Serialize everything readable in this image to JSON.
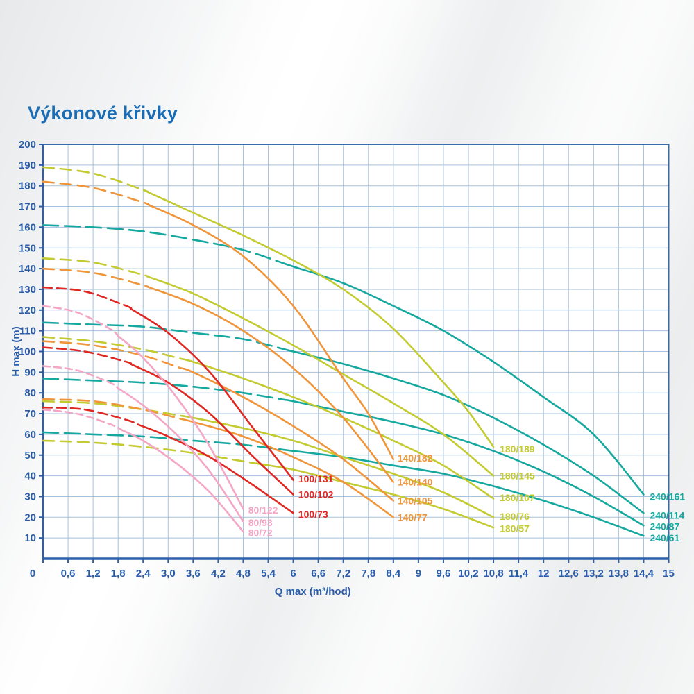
{
  "title": "Výkonové křivky",
  "chart_data": {
    "type": "line",
    "title": "Výkonové křivky",
    "xlabel": "Q max (m³/hod)",
    "ylabel": "H max (m)",
    "xlim": [
      0,
      15
    ],
    "ylim": [
      0,
      200
    ],
    "x_tick_step": 0.6,
    "y_tick_step": 10,
    "x_tick_labels": [
      "0",
      "0,6",
      "1,2",
      "1,8",
      "2,4",
      "3,0",
      "3,6",
      "4,2",
      "4,8",
      "5,4",
      "6",
      "6,6",
      "7,2",
      "7,8",
      "8,4",
      "9",
      "9,6",
      "10,2",
      "10,8",
      "11,4",
      "12",
      "12,6",
      "13,2",
      "13,8",
      "14,4",
      "15"
    ],
    "y_tick_labels": [
      "10",
      "20",
      "30",
      "40",
      "50",
      "60",
      "70",
      "80",
      "90",
      "100",
      "110",
      "120",
      "130",
      "140",
      "150",
      "160",
      "170",
      "180",
      "190",
      "200"
    ],
    "grid": true,
    "legend_position": "labels-at-curve-ends",
    "families": [
      {
        "name": "240",
        "color": "#15a89e",
        "dash": "22 9"
      },
      {
        "name": "180",
        "color": "#c3cb31",
        "dash": "16 9"
      },
      {
        "name": "140",
        "color": "#f0953a",
        "dash": "16 9"
      },
      {
        "name": "100",
        "color": "#e02722",
        "dash": "13 7"
      },
      {
        "name": "80",
        "color": "#f4a6c5",
        "dash": "10 6"
      }
    ],
    "series": [
      {
        "label": "240/161",
        "family": "240",
        "solid_from": 5.8,
        "label_pos": [
          14.55,
          30
        ],
        "points": [
          [
            0,
            161
          ],
          [
            1.2,
            160
          ],
          [
            2.4,
            158
          ],
          [
            3.6,
            154
          ],
          [
            4.8,
            149
          ],
          [
            6,
            141
          ],
          [
            7.2,
            133
          ],
          [
            8.4,
            122
          ],
          [
            9.6,
            110
          ],
          [
            10.8,
            95
          ],
          [
            12,
            78
          ],
          [
            13.2,
            60
          ],
          [
            14.4,
            31
          ]
        ]
      },
      {
        "label": "240/114",
        "family": "240",
        "solid_from": 5.8,
        "label_pos": [
          14.55,
          21
        ],
        "points": [
          [
            0,
            114
          ],
          [
            1.2,
            113
          ],
          [
            2.4,
            112
          ],
          [
            3.6,
            109
          ],
          [
            4.8,
            106
          ],
          [
            6,
            100
          ],
          [
            7.2,
            94
          ],
          [
            8.4,
            87
          ],
          [
            9.6,
            79
          ],
          [
            10.8,
            68
          ],
          [
            12,
            55
          ],
          [
            13.2,
            40
          ],
          [
            14.4,
            22
          ]
        ]
      },
      {
        "label": "240/87",
        "family": "240",
        "solid_from": 5.8,
        "label_pos": [
          14.55,
          15.5
        ],
        "points": [
          [
            0,
            87
          ],
          [
            1.2,
            86
          ],
          [
            2.4,
            85
          ],
          [
            3.6,
            83
          ],
          [
            4.8,
            80
          ],
          [
            6,
            76
          ],
          [
            7.2,
            71
          ],
          [
            8.4,
            66
          ],
          [
            9.6,
            60
          ],
          [
            10.8,
            52
          ],
          [
            12,
            42
          ],
          [
            13.2,
            30
          ],
          [
            14.4,
            16
          ]
        ]
      },
      {
        "label": "240/61",
        "family": "240",
        "solid_from": 5.8,
        "label_pos": [
          14.55,
          10
        ],
        "points": [
          [
            0,
            61
          ],
          [
            1.2,
            60
          ],
          [
            2.4,
            59
          ],
          [
            3.6,
            57
          ],
          [
            4.8,
            55
          ],
          [
            6,
            52
          ],
          [
            7.2,
            49
          ],
          [
            8.4,
            45
          ],
          [
            9.6,
            41
          ],
          [
            10.8,
            35
          ],
          [
            12,
            28
          ],
          [
            13.2,
            20
          ],
          [
            14.4,
            11
          ]
        ]
      },
      {
        "label": "180/189",
        "family": "180",
        "solid_from": 2.5,
        "label_pos": [
          10.95,
          53
        ],
        "points": [
          [
            0,
            189
          ],
          [
            1.2,
            186
          ],
          [
            2.4,
            178
          ],
          [
            3.6,
            167
          ],
          [
            4.8,
            156
          ],
          [
            6,
            144
          ],
          [
            7.2,
            130
          ],
          [
            8.4,
            111
          ],
          [
            9.6,
            85
          ],
          [
            10.2,
            71
          ],
          [
            10.8,
            54
          ]
        ]
      },
      {
        "label": "180/145",
        "family": "180",
        "solid_from": 2.5,
        "label_pos": [
          10.95,
          40
        ],
        "points": [
          [
            0,
            145
          ],
          [
            1.2,
            143
          ],
          [
            2.4,
            137
          ],
          [
            3.6,
            128
          ],
          [
            4.8,
            116
          ],
          [
            6,
            103
          ],
          [
            7.2,
            89
          ],
          [
            8.4,
            75
          ],
          [
            9.6,
            60
          ],
          [
            10.8,
            40
          ]
        ]
      },
      {
        "label": "180/107",
        "family": "180",
        "solid_from": 3.3,
        "label_pos": [
          10.95,
          29.5
        ],
        "points": [
          [
            0,
            107
          ],
          [
            1.2,
            105
          ],
          [
            2.4,
            101
          ],
          [
            3.6,
            95
          ],
          [
            4.8,
            87
          ],
          [
            6,
            78
          ],
          [
            7.2,
            68
          ],
          [
            8.4,
            57
          ],
          [
            9.6,
            45
          ],
          [
            10.8,
            29
          ]
        ]
      },
      {
        "label": "180/76",
        "family": "180",
        "solid_from": 3.3,
        "label_pos": [
          10.95,
          20.5
        ],
        "points": [
          [
            0,
            76
          ],
          [
            1.2,
            75
          ],
          [
            2.4,
            72
          ],
          [
            3.6,
            68
          ],
          [
            4.8,
            63
          ],
          [
            6,
            57
          ],
          [
            7.2,
            49
          ],
          [
            8.4,
            41
          ],
          [
            9.6,
            32
          ],
          [
            10.8,
            20
          ]
        ]
      },
      {
        "label": "180/57",
        "family": "180",
        "solid_from": 5.0,
        "label_pos": [
          10.95,
          14.5
        ],
        "points": [
          [
            0,
            57
          ],
          [
            1.2,
            56
          ],
          [
            2.4,
            54
          ],
          [
            3.6,
            51
          ],
          [
            4.8,
            47
          ],
          [
            6,
            43
          ],
          [
            7.2,
            37
          ],
          [
            8.4,
            31
          ],
          [
            9.6,
            24
          ],
          [
            10.8,
            15
          ]
        ]
      },
      {
        "label": "140/182",
        "family": "140",
        "solid_from": 2.5,
        "label_pos": [
          8.5,
          48.5
        ],
        "points": [
          [
            0,
            182
          ],
          [
            1.2,
            179
          ],
          [
            2.4,
            172
          ],
          [
            3.6,
            161
          ],
          [
            4.8,
            146
          ],
          [
            6,
            122
          ],
          [
            7.2,
            87
          ],
          [
            7.8,
            70
          ],
          [
            8.4,
            48
          ]
        ]
      },
      {
        "label": "140/140",
        "family": "140",
        "solid_from": 2.5,
        "label_pos": [
          8.5,
          37
        ],
        "points": [
          [
            0,
            140
          ],
          [
            1.2,
            138
          ],
          [
            2.4,
            132
          ],
          [
            3.6,
            123
          ],
          [
            4.8,
            110
          ],
          [
            6,
            92
          ],
          [
            7.2,
            68
          ],
          [
            8.4,
            37
          ]
        ]
      },
      {
        "label": "140/105",
        "family": "140",
        "solid_from": 3.3,
        "label_pos": [
          8.5,
          28
        ],
        "points": [
          [
            0,
            105
          ],
          [
            1.2,
            103
          ],
          [
            2.4,
            98
          ],
          [
            3.6,
            90
          ],
          [
            4.8,
            78
          ],
          [
            6,
            64
          ],
          [
            7.2,
            48
          ],
          [
            8.4,
            28
          ]
        ]
      },
      {
        "label": "140/77",
        "family": "140",
        "solid_from": 3.3,
        "label_pos": [
          8.5,
          20
        ],
        "points": [
          [
            0,
            77
          ],
          [
            1.2,
            76
          ],
          [
            2.4,
            72
          ],
          [
            3.6,
            66
          ],
          [
            4.8,
            59
          ],
          [
            6,
            49
          ],
          [
            7.2,
            37
          ],
          [
            8.4,
            20
          ]
        ]
      },
      {
        "label": "100/131",
        "family": "100",
        "solid_from": 2.1,
        "label_pos": [
          6.12,
          38.5
        ],
        "points": [
          [
            0,
            131
          ],
          [
            1,
            129
          ],
          [
            2,
            122
          ],
          [
            3,
            109
          ],
          [
            4,
            90
          ],
          [
            5,
            64
          ],
          [
            5.5,
            51
          ],
          [
            6,
            38
          ]
        ]
      },
      {
        "label": "100/102",
        "family": "100",
        "solid_from": 2.1,
        "label_pos": [
          6.12,
          31
        ],
        "points": [
          [
            0,
            102
          ],
          [
            1,
            100
          ],
          [
            2,
            95
          ],
          [
            3,
            85
          ],
          [
            4,
            70
          ],
          [
            5,
            50
          ],
          [
            6,
            31
          ]
        ]
      },
      {
        "label": "100/73",
        "family": "100",
        "solid_from": 2.3,
        "label_pos": [
          6.12,
          21.5
        ],
        "points": [
          [
            0,
            73
          ],
          [
            1,
            72
          ],
          [
            2,
            67
          ],
          [
            3,
            59
          ],
          [
            4,
            49
          ],
          [
            5,
            36
          ],
          [
            6,
            22
          ]
        ]
      },
      {
        "label": "80/122",
        "family": "80",
        "solid_from": 1.8,
        "label_pos": [
          4.92,
          23.5
        ],
        "points": [
          [
            0,
            122
          ],
          [
            0.8,
            119
          ],
          [
            1.6,
            111
          ],
          [
            2.4,
            97
          ],
          [
            3.2,
            78
          ],
          [
            4,
            54
          ],
          [
            4.8,
            24
          ]
        ]
      },
      {
        "label": "80/93",
        "family": "80",
        "solid_from": 1.8,
        "label_pos": [
          4.92,
          17.5
        ],
        "points": [
          [
            0,
            93
          ],
          [
            0.8,
            91
          ],
          [
            1.6,
            85
          ],
          [
            2.4,
            74
          ],
          [
            3.2,
            60
          ],
          [
            4,
            42
          ],
          [
            4.8,
            18
          ]
        ]
      },
      {
        "label": "80/72",
        "family": "80",
        "solid_from": 1.9,
        "label_pos": [
          4.92,
          12.5
        ],
        "points": [
          [
            0,
            72
          ],
          [
            0.8,
            70
          ],
          [
            1.6,
            65
          ],
          [
            2.4,
            57
          ],
          [
            3.2,
            46
          ],
          [
            4,
            32
          ],
          [
            4.8,
            13
          ]
        ]
      }
    ]
  },
  "styles": {
    "axis_color": "#3a6bad",
    "axis_strong_color": "#2f5fa8",
    "grid_color": "#a6c1dc",
    "tick_text_color": "#2a5ca9",
    "title_color": "#1a6db5",
    "plot_bg": "#ffffff"
  }
}
